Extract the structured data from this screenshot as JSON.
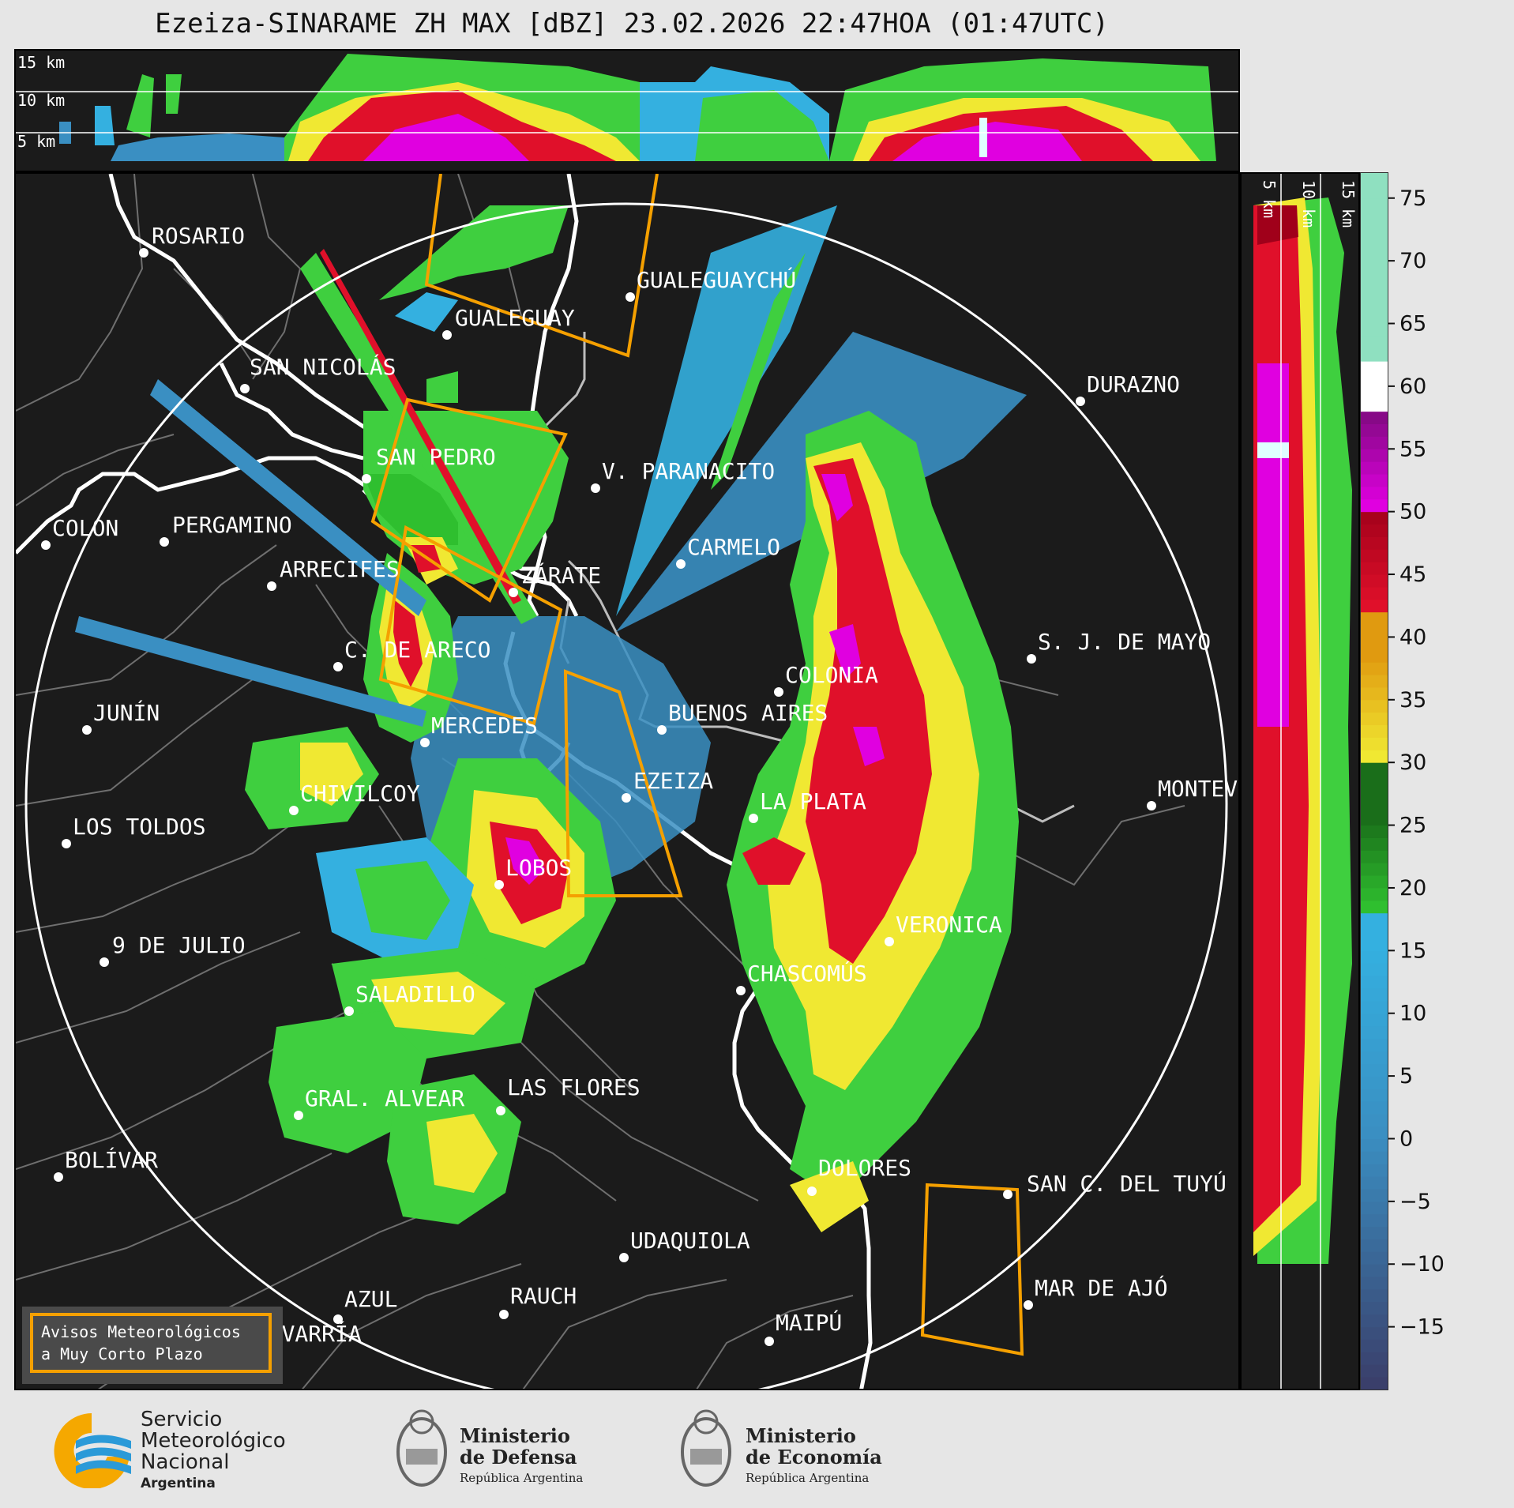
{
  "title": "Ezeiza-SINARAME ZH MAX [dBZ] 23.02.2026 22:47HOA (01:47UTC)",
  "top_panel": {
    "height_labels": [
      "15 km",
      "10 km",
      "5 km"
    ]
  },
  "side_panel": {
    "height_labels": [
      "5 km",
      "10 km",
      "15 km"
    ]
  },
  "colorbar": {
    "unit": "dBZ",
    "range": [
      -20,
      77
    ],
    "tick_labels": [
      "75",
      "70",
      "65",
      "60",
      "55",
      "50",
      "45",
      "40",
      "35",
      "30",
      "25",
      "20",
      "15",
      "10",
      "5",
      "0",
      "−5",
      "−10",
      "−15"
    ],
    "colors": {
      "low": "#3a3f6b",
      "cyan_blue": "#3a8fc2",
      "light_blue": "#34b0e0",
      "green": "#2fbf2f",
      "dark_green": "#1a6e1a",
      "yellow": "#f0e832",
      "orange": "#e09a10",
      "red": "#e0102a",
      "dark_red": "#a0001a",
      "magenta": "#e000e0",
      "purple": "#7a0a7a",
      "white": "#ffffff",
      "mint": "#8fe0c0"
    }
  },
  "cities": [
    {
      "name": "ROSARIO"
    },
    {
      "name": "GUALEGUAYCHÚ"
    },
    {
      "name": "GUALEGUAY"
    },
    {
      "name": "SAN NICOLÁS"
    },
    {
      "name": "DURAZNO"
    },
    {
      "name": "SAN PEDRO"
    },
    {
      "name": "V. PARANACITO"
    },
    {
      "name": "COLON"
    },
    {
      "name": "PERGAMINO"
    },
    {
      "name": "CARMELO"
    },
    {
      "name": "ARRECIFES"
    },
    {
      "name": "ZÁRATE"
    },
    {
      "name": "S. J. DE MAYO"
    },
    {
      "name": "C. DE ARECO"
    },
    {
      "name": "COLONIA"
    },
    {
      "name": "JUNÍN"
    },
    {
      "name": "BUENOS AIRES"
    },
    {
      "name": "MERCEDES"
    },
    {
      "name": "MONTEV"
    },
    {
      "name": "EZEIZA"
    },
    {
      "name": "CHIVILCOY"
    },
    {
      "name": "LA PLATA"
    },
    {
      "name": "LOS TOLDOS"
    },
    {
      "name": "LOBOS"
    },
    {
      "name": "VERONICA"
    },
    {
      "name": "9 DE JULIO"
    },
    {
      "name": "CHASCOMÚS"
    },
    {
      "name": "SALADILLO"
    },
    {
      "name": "GRAL. ALVEAR"
    },
    {
      "name": "LAS FLORES"
    },
    {
      "name": "BOLÍVAR"
    },
    {
      "name": "DOLORES"
    },
    {
      "name": "SAN C. DEL TUYÚ"
    },
    {
      "name": "UDAQUIOLA"
    },
    {
      "name": "AZUL"
    },
    {
      "name": "RAUCH"
    },
    {
      "name": "MAR DE AJÓ"
    },
    {
      "name": "OLAVARRÍA"
    },
    {
      "name": "MAIPÚ"
    }
  ],
  "legend": {
    "line1": "Avisos Meteorológicos",
    "line2": "a Muy Corto Plazo",
    "color": "#f5a000"
  },
  "footer": {
    "smn": {
      "line1": "Servicio",
      "line2": "Meteorológico",
      "line3": "Nacional",
      "line4": "Argentina"
    },
    "defensa": {
      "line1": "Ministerio",
      "line2": "de Defensa",
      "line3": "República Argentina"
    },
    "economia": {
      "line1": "Ministerio",
      "line2": "de Economía",
      "line3": "República Argentina"
    }
  }
}
